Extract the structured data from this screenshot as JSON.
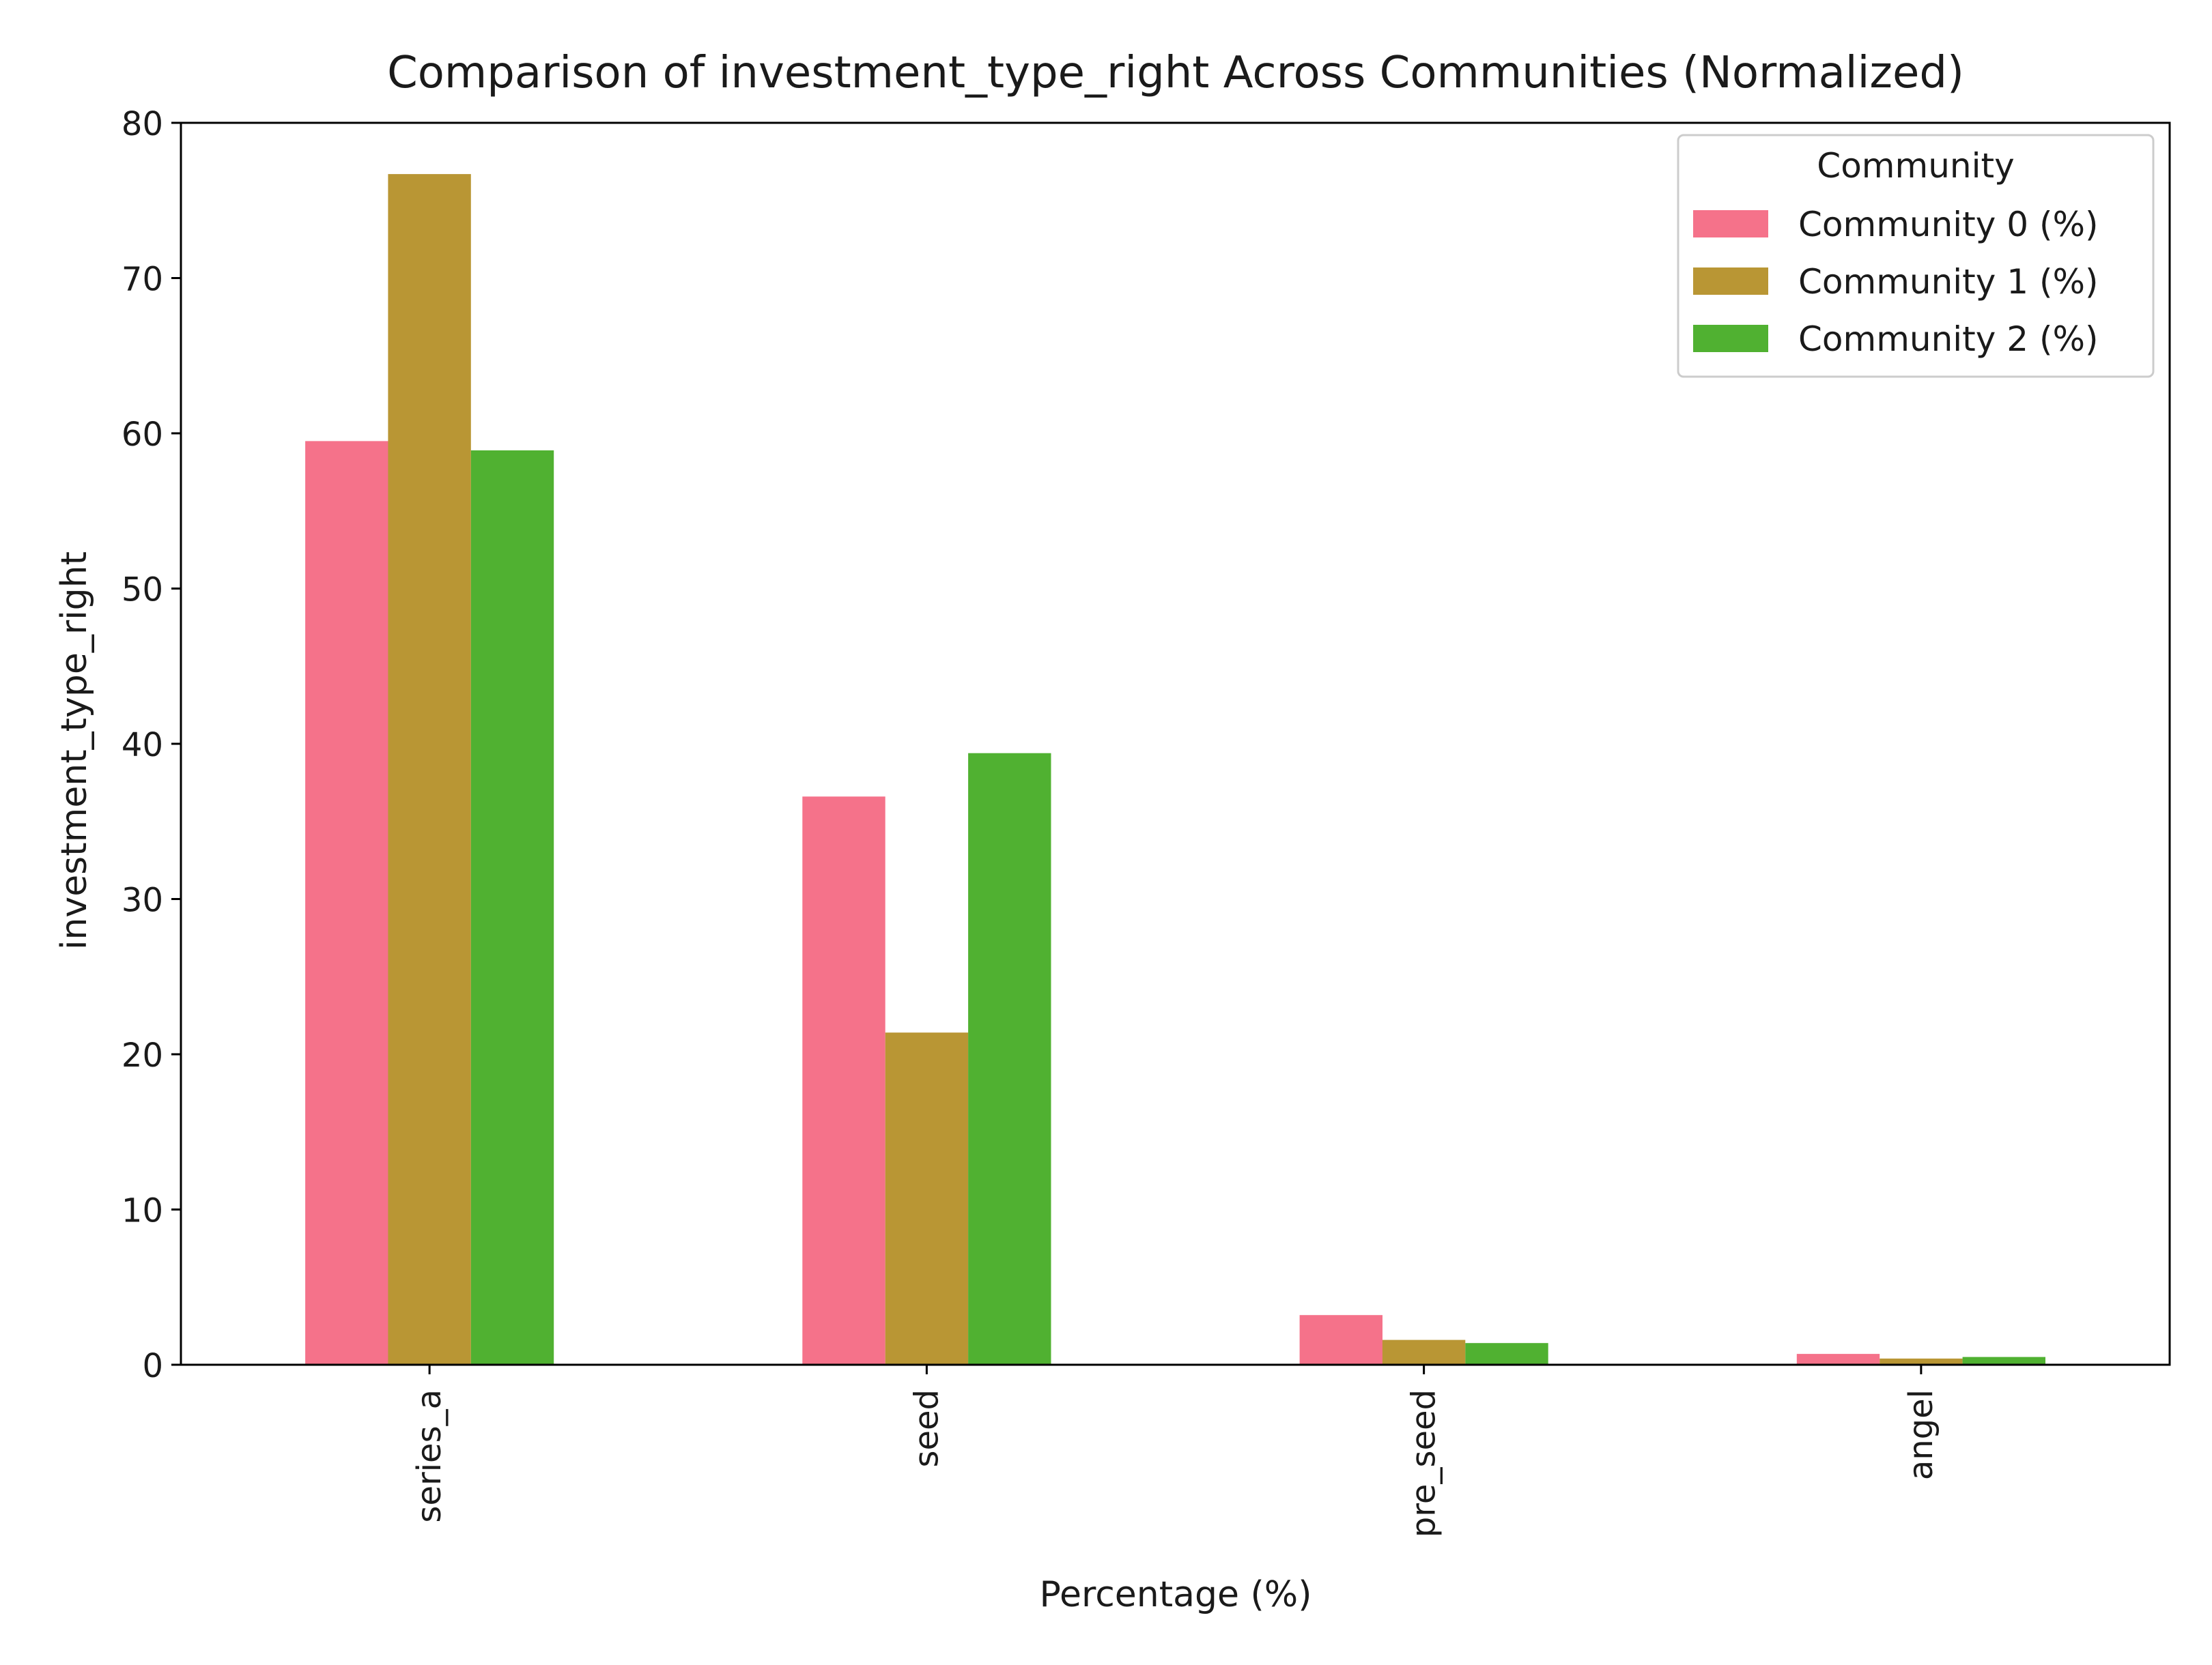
{
  "chart_data": {
    "type": "bar",
    "title": "Comparison of investment_type_right Across Communities (Normalized)",
    "xlabel": "Percentage (%)",
    "ylabel": "investment_type_right",
    "categories": [
      "series_a",
      "seed",
      "pre_seed",
      "angel"
    ],
    "series": [
      {
        "name": "Community 0 (%)",
        "color": "#f5728a",
        "values": [
          59.5,
          36.6,
          3.2,
          0.7
        ]
      },
      {
        "name": "Community 1 (%)",
        "color": "#b99634",
        "values": [
          76.7,
          21.4,
          1.6,
          0.4
        ]
      },
      {
        "name": "Community 2 (%)",
        "color": "#50b131",
        "values": [
          58.9,
          39.4,
          1.4,
          0.5
        ]
      }
    ],
    "ylim": [
      0,
      80
    ],
    "yticks": [
      "0",
      "10",
      "20",
      "30",
      "40",
      "50",
      "60",
      "70",
      "80"
    ],
    "legend": {
      "title": "Community",
      "position": "top-right"
    },
    "grid": false
  }
}
